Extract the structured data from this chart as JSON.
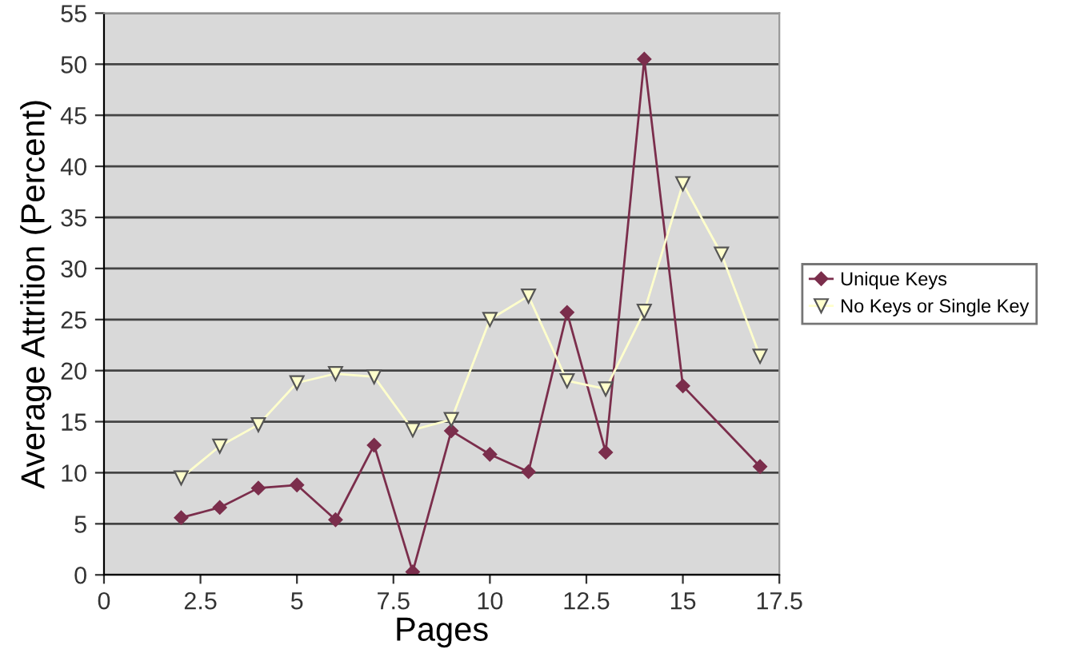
{
  "chart_data": {
    "type": "line",
    "xlabel": "Pages",
    "ylabel": "Average Attrition (Percent)",
    "xlim": [
      0,
      17.5
    ],
    "xticks": [
      0,
      2.5,
      5,
      7.5,
      10,
      12.5,
      15,
      17.5
    ],
    "ylim": [
      0,
      55
    ],
    "yticks": [
      0,
      5,
      10,
      15,
      20,
      25,
      30,
      35,
      40,
      45,
      50,
      55
    ],
    "grid": "y",
    "legend": "right",
    "series": [
      {
        "name": "Unique Keys",
        "color": "#7b2e4c",
        "marker": "diamond",
        "x": [
          2,
          3,
          4,
          5,
          6,
          7,
          8,
          9,
          10,
          11,
          12,
          13,
          14,
          15,
          17
        ],
        "values": [
          5.6,
          6.6,
          8.5,
          8.8,
          5.4,
          12.7,
          0.3,
          14.1,
          11.8,
          10.1,
          25.7,
          12,
          50.5,
          18.5,
          10.6
        ]
      },
      {
        "name": "No Keys or Single Key",
        "color": "#ffffcc",
        "marker": "triangle",
        "x": [
          2,
          3,
          4,
          5,
          6,
          7,
          8,
          9,
          10,
          11,
          12,
          13,
          14,
          15,
          16,
          17
        ],
        "values": [
          9.5,
          12.6,
          14.7,
          18.8,
          19.7,
          19.4,
          14.2,
          15.2,
          25,
          27.3,
          19,
          18.2,
          25.8,
          38.3,
          31.4,
          21.4
        ]
      }
    ]
  }
}
